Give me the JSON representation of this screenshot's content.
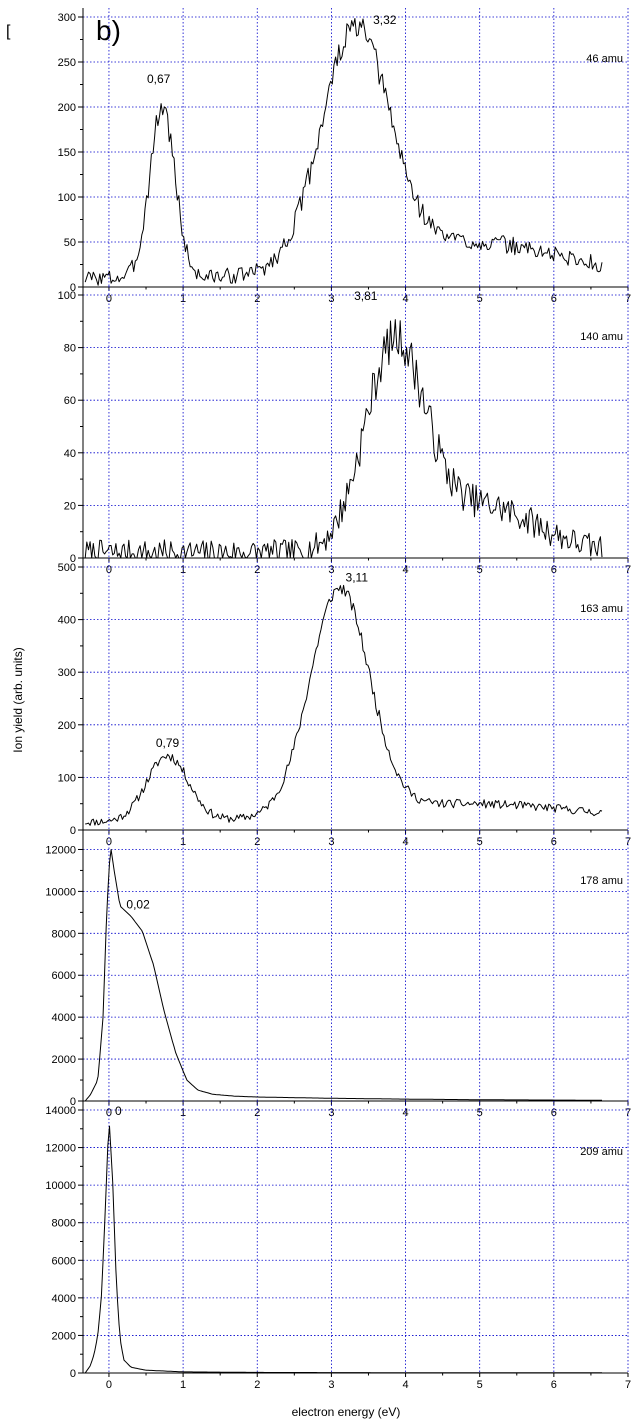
{
  "figure": {
    "panel_letter": "b)",
    "bracket": "["
  },
  "chart_data": {
    "type": "line",
    "xlabel": "electron energy (eV)",
    "ylabel": "Ion yield (arb. units)",
    "xlim": [
      -0.35,
      7
    ],
    "x_ticks": [
      "0",
      "1",
      "2",
      "3",
      "4",
      "5",
      "6",
      "7"
    ],
    "grid": true,
    "grid_color": "#0000cc",
    "line_color": "#000000",
    "panels": [
      {
        "mass_label": "46 amu",
        "ylim": [
          0,
          300
        ],
        "y_ticks": [
          0,
          50,
          100,
          150,
          200,
          250,
          300
        ],
        "y_tick_labels": [
          "0",
          "50",
          "100",
          "150",
          "200",
          "250",
          "300"
        ],
        "peaks": [
          {
            "label": "0,67",
            "x": 0.67,
            "y": 222
          },
          {
            "label": "3,32",
            "x": 3.32,
            "y": 288
          }
        ],
        "components": [
          {
            "x0": 0.72,
            "height": 190,
            "sigma": 0.17
          },
          {
            "x0": 3.32,
            "height": 258,
            "sigma": 0.46
          },
          {
            "x0": 4.8,
            "height": 40,
            "sigma": 1.3
          }
        ],
        "baseline": 10,
        "noise": 14,
        "noise_seed": 3
      },
      {
        "mass_label": "140 amu",
        "ylim": [
          0,
          100
        ],
        "y_ticks": [
          0,
          20,
          40,
          60,
          80,
          100
        ],
        "y_tick_labels": [
          "0",
          "20",
          "40",
          "60",
          "80",
          "100"
        ],
        "peaks": [
          {
            "label": "3,81",
            "x": 3.81,
            "y": 100
          }
        ],
        "components": [
          {
            "x0": 3.85,
            "height": 76,
            "sigma": 0.4
          },
          {
            "x0": 5.0,
            "height": 18,
            "sigma": 0.75
          }
        ],
        "baseline": 2,
        "noise": 8,
        "noise_seed": 7
      },
      {
        "mass_label": "163 amu",
        "ylim": [
          0,
          500
        ],
        "y_ticks": [
          0,
          100,
          200,
          300,
          400,
          500
        ],
        "y_tick_labels": [
          "0",
          "100",
          "200",
          "300",
          "400",
          "500"
        ],
        "peaks": [
          {
            "label": "0,79",
            "x": 0.79,
            "y": 150
          },
          {
            "label": "3,11",
            "x": 3.11,
            "y": 465
          }
        ],
        "components": [
          {
            "x0": 0.79,
            "height": 125,
            "sigma": 0.28
          },
          {
            "x0": 3.11,
            "height": 425,
            "sigma": 0.4
          },
          {
            "x0": 4.8,
            "height": 35,
            "sigma": 1.6
          }
        ],
        "baseline": 15,
        "noise": 12,
        "noise_seed": 11
      },
      {
        "mass_label": "178 amu",
        "ylim": [
          0,
          12500
        ],
        "y_ticks": [
          0,
          2000,
          4000,
          6000,
          8000,
          10000,
          12000
        ],
        "y_tick_labels": [
          "0",
          "2000",
          "4000",
          "6000",
          "8000",
          "10000",
          "12000"
        ],
        "peaks": [
          {
            "label": "0,02",
            "x": 0.02,
            "y": 9100
          }
        ],
        "components": [],
        "profile": [
          [
            -0.32,
            0
          ],
          [
            -0.25,
            300
          ],
          [
            -0.15,
            1000
          ],
          [
            -0.08,
            4000
          ],
          [
            -0.03,
            9000
          ],
          [
            0.02,
            12200
          ],
          [
            0.07,
            11000
          ],
          [
            0.15,
            9300
          ],
          [
            0.3,
            8800
          ],
          [
            0.45,
            8100
          ],
          [
            0.6,
            6500
          ],
          [
            0.75,
            4200
          ],
          [
            0.9,
            2300
          ],
          [
            1.05,
            1000
          ],
          [
            1.2,
            520
          ],
          [
            1.4,
            320
          ],
          [
            1.7,
            230
          ],
          [
            2.0,
            190
          ],
          [
            3.0,
            130
          ],
          [
            4.0,
            90
          ],
          [
            5.0,
            60
          ],
          [
            6.0,
            45
          ],
          [
            6.65,
            35
          ]
        ],
        "baseline": 0,
        "noise": 0,
        "noise_seed": 1
      },
      {
        "mass_label": "209 amu",
        "ylim": [
          0,
          14000
        ],
        "y_ticks": [
          0,
          2000,
          4000,
          6000,
          8000,
          10000,
          12000,
          14000
        ],
        "y_tick_labels": [
          "0",
          "2000",
          "4000",
          "6000",
          "8000",
          "10000",
          "12000",
          "14000"
        ],
        "peaks": [
          {
            "label": "0",
            "x": 0.0,
            "y": 13600
          }
        ],
        "components": [],
        "profile": [
          [
            -0.32,
            0
          ],
          [
            -0.25,
            400
          ],
          [
            -0.2,
            1000
          ],
          [
            -0.15,
            2000
          ],
          [
            -0.1,
            4200
          ],
          [
            -0.05,
            8600
          ],
          [
            0.0,
            13600
          ],
          [
            0.05,
            10200
          ],
          [
            0.1,
            4800
          ],
          [
            0.15,
            1800
          ],
          [
            0.2,
            700
          ],
          [
            0.3,
            300
          ],
          [
            0.5,
            150
          ],
          [
            1.0,
            60
          ],
          [
            2.0,
            30
          ],
          [
            4.0,
            15
          ],
          [
            6.65,
            10
          ]
        ],
        "baseline": 0,
        "noise": 0,
        "noise_seed": 1
      }
    ]
  }
}
